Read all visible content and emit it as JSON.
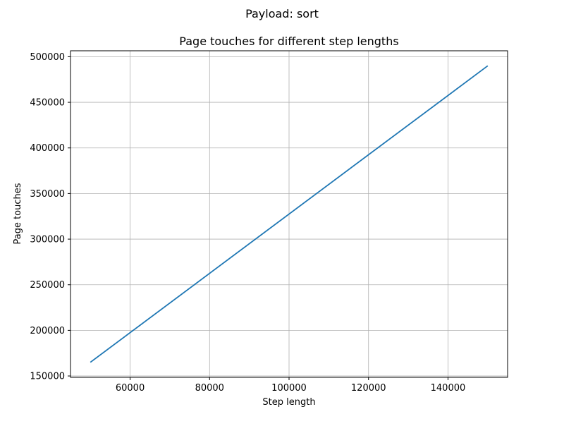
{
  "figure": {
    "suptitle": "Payload: sort"
  },
  "chart_data": {
    "type": "line",
    "title": "Page touches for different step lengths",
    "xlabel": "Step length",
    "ylabel": "Page touches",
    "xlim": [
      45000,
      155000
    ],
    "ylim": [
      148500,
      506500
    ],
    "xticks": [
      60000,
      80000,
      100000,
      120000,
      140000
    ],
    "xtick_labels": [
      "60000",
      "80000",
      "100000",
      "120000",
      "140000"
    ],
    "yticks": [
      150000,
      200000,
      250000,
      300000,
      350000,
      400000,
      450000,
      500000
    ],
    "ytick_labels": [
      "150000",
      "200000",
      "250000",
      "300000",
      "350000",
      "400000",
      "450000",
      "500000"
    ],
    "grid": true,
    "series": [
      {
        "color": "#1f77b4",
        "x": [
          50000,
          150000
        ],
        "y": [
          165000,
          490000
        ]
      }
    ]
  }
}
